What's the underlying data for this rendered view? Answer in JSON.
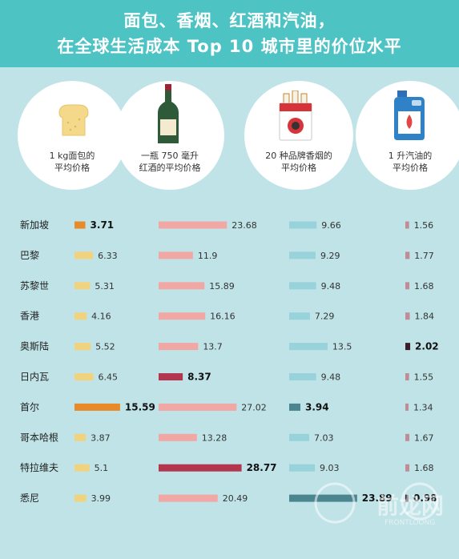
{
  "title_lines": [
    "面包、香烟、红酒和汽油，",
    "在全球生活成本 Top 10 城市里的价位水平"
  ],
  "columns": [
    {
      "label": "1 kg面包的\n平均价格",
      "icon": "bread-icon"
    },
    {
      "label": "一瓶 750 毫升\n红酒的平均价格",
      "icon": "wine-bottle-icon"
    },
    {
      "label": "20 种品牌香烟的\n平均价格",
      "icon": "cigarette-pack-icon"
    },
    {
      "label": "1 升汽油的\n平均价格",
      "icon": "fuel-can-icon"
    }
  ],
  "watermark": {
    "text": "前龙网",
    "sub": "FRONTLOONG"
  },
  "colors": {
    "background": "#bfe3e7",
    "header": "#4ec3c4",
    "bread": "#f1d27e",
    "bread_hl": "#e8892a",
    "wine": "#f1a7a3",
    "wine_hl": "#b2374e",
    "cig": "#98d2db",
    "cig_hl": "#4a8590",
    "fuel": "#bf8d96",
    "fuel_hl": "#3a1e2c"
  },
  "chart_data": {
    "type": "bar",
    "categories": [
      "新加坡",
      "巴黎",
      "苏黎世",
      "香港",
      "奥斯陆",
      "日内瓦",
      "首尔",
      "哥本哈根",
      "特拉维夫",
      "悉尼"
    ],
    "series": [
      {
        "name": "1 kg面包的平均价格",
        "values": [
          3.71,
          6.33,
          5.31,
          4.16,
          5.52,
          6.45,
          15.59,
          3.87,
          5.1,
          3.99
        ],
        "highlight": [
          0,
          6
        ]
      },
      {
        "name": "一瓶 750 毫升红酒的平均价格",
        "values": [
          23.68,
          11.9,
          15.89,
          16.16,
          13.7,
          8.37,
          27.02,
          13.28,
          28.77,
          20.49
        ],
        "highlight": [
          5,
          8
        ]
      },
      {
        "name": "20 种品牌香烟的平均价格",
        "values": [
          9.66,
          9.29,
          9.48,
          7.29,
          13.5,
          9.48,
          3.94,
          7.03,
          9.03,
          23.89
        ],
        "highlight": [
          6,
          9
        ]
      },
      {
        "name": "1 升汽油的平均价格",
        "values": [
          1.56,
          1.77,
          1.68,
          1.84,
          2.02,
          1.55,
          1.34,
          1.67,
          1.68,
          0.98
        ],
        "highlight": [
          4,
          9
        ]
      }
    ],
    "labels": [
      [
        "3.71",
        "6.33",
        "5.31",
        "4.16",
        "5.52",
        "6.45",
        "15.59",
        "3.87",
        "5.1",
        "3.99"
      ],
      [
        "23.68",
        "11.9",
        "15.89",
        "16.16",
        "13.7",
        "8.37",
        "27.02",
        "13.28",
        "28.77",
        "20.49"
      ],
      [
        "9.66",
        "9.29",
        "9.48",
        "7.29",
        "13.5",
        "9.48",
        "3.94",
        "7.03",
        "9.03",
        "23.89"
      ],
      [
        "1.56",
        "1.77",
        "1.68",
        "1.84",
        "2.02",
        "1.55",
        "1.34",
        "1.67",
        "1.68",
        "0.98"
      ]
    ]
  }
}
